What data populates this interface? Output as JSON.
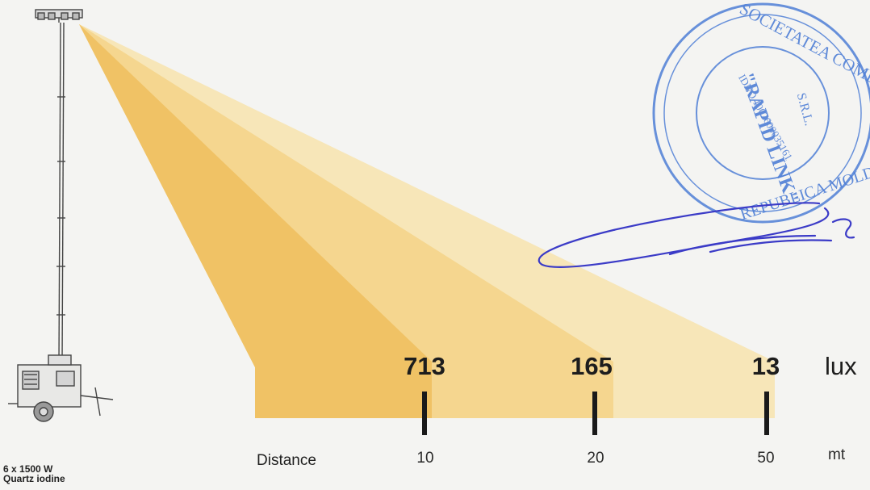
{
  "diagram": {
    "unit_lux": "lux",
    "distance_label": "Distance",
    "distance_unit": "mt",
    "measurements": [
      {
        "lux": "713",
        "distance": "10"
      },
      {
        "lux": "165",
        "distance": "20"
      },
      {
        "lux": "13",
        "distance": "50"
      }
    ],
    "lamp": {
      "line1": "6 x 1500 W",
      "line2": "Quartz iodine"
    },
    "beam_colors": [
      "#f7e6b8",
      "#f5d68f",
      "#f0c265"
    ]
  },
  "stamp": {
    "company": "SOCIETATEA COMERCIALĂ",
    "brand": "\"RAPID LINK\"",
    "suffix": "S.R.L.",
    "country": "REPUBLICA MOLDOVA",
    "idno": "IDNO 1007600035161"
  }
}
